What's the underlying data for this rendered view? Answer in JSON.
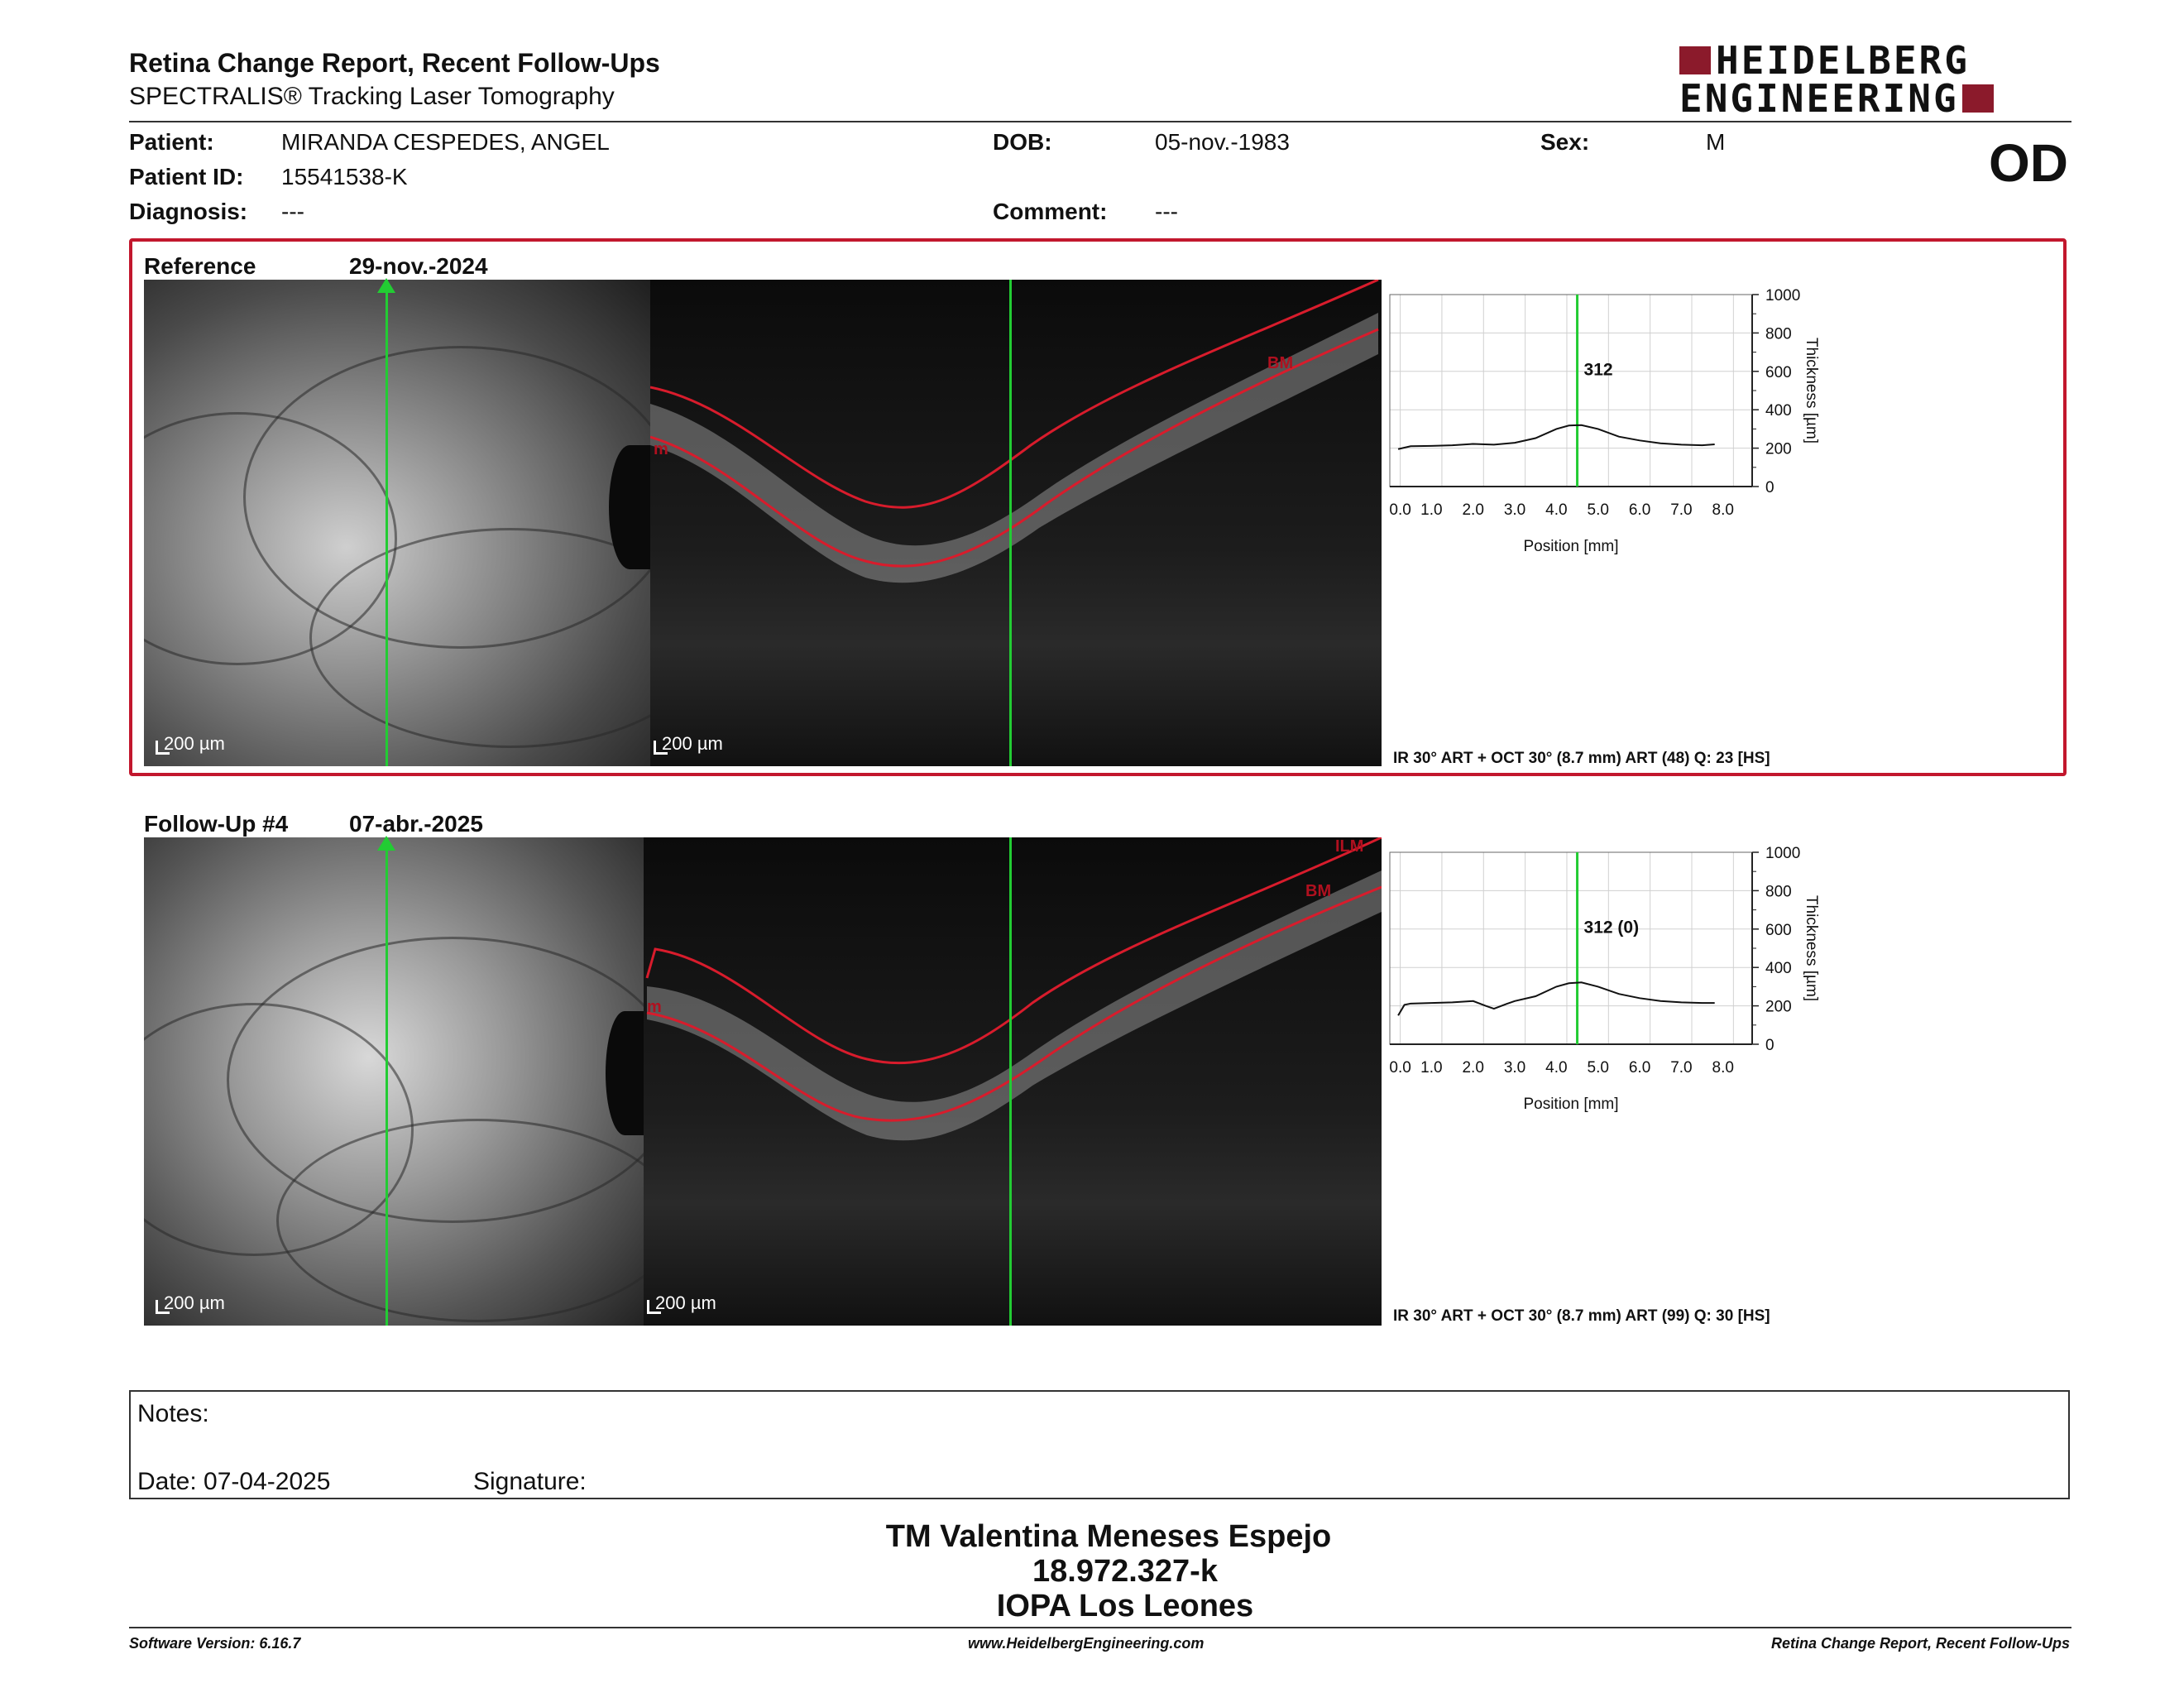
{
  "header": {
    "title": "Retina Change Report, Recent Follow-Ups",
    "subtitle": "SPECTRALIS® Tracking Laser Tomography",
    "brand_line1": "HEIDELBERG",
    "brand_line2": "ENGINEERING",
    "eye": "OD"
  },
  "patient": {
    "name_label": "Patient:",
    "name": "MIRANDA CESPEDES, ANGEL",
    "id_label": "Patient ID:",
    "id": "15541538-K",
    "diagnosis_label": "Diagnosis:",
    "diagnosis": "---",
    "dob_label": "DOB:",
    "dob": "05-nov.-1983",
    "comment_label": "Comment:",
    "comment": "---",
    "sex_label": "Sex:",
    "sex": "M"
  },
  "reference": {
    "label": "Reference",
    "date": "29-nov.-2024",
    "scale_ir": "200 µm",
    "scale_oct": "200 µm",
    "layer_top": "m",
    "layer_bm": "BM",
    "acquisition": "IR 30° ART + OCT 30° (8.7 mm) ART (48) Q: 23 [HS]",
    "graph_value": "312"
  },
  "followup": {
    "label": "Follow-Up #4",
    "date": "07-abr.-2025",
    "scale_ir": "200 µm",
    "scale_oct": "200 µm",
    "layer_top": "m",
    "layer_bm": "BM",
    "layer_ilm": "ILM",
    "acquisition": "IR 30° ART + OCT 30° (8.7 mm) ART (99) Q: 30 [HS]",
    "graph_value": "312 (0)"
  },
  "graph_axes": {
    "x_ticks": [
      "0.0",
      "1.0",
      "2.0",
      "3.0",
      "4.0",
      "5.0",
      "6.0",
      "7.0",
      "8.0"
    ],
    "y_ticks": [
      "1000",
      "800",
      "600",
      "400",
      "200",
      "0"
    ],
    "x_label": "Position [mm]",
    "y_label": "Thickness [µm]"
  },
  "chart_data": [
    {
      "type": "line",
      "xlabel": "Position [mm]",
      "ylabel": "Thickness [µm]",
      "xlim": [
        0,
        8.7
      ],
      "ylim": [
        0,
        1000
      ],
      "cursor_x": 4.5,
      "series": [
        {
          "x": [
            0.2,
            0.5,
            1.0,
            1.5,
            2.0,
            2.5,
            3.0,
            3.5,
            4.0,
            4.3,
            4.6,
            5.0,
            5.5,
            6.0,
            6.5,
            7.0,
            7.5,
            7.8
          ],
          "y": [
            195,
            210,
            212,
            215,
            222,
            218,
            228,
            252,
            300,
            318,
            320,
            300,
            260,
            240,
            225,
            218,
            215,
            220
          ]
        }
      ]
    },
    {
      "type": "line",
      "xlabel": "Position [mm]",
      "ylabel": "Thickness [µm]",
      "xlim": [
        0,
        8.7
      ],
      "ylim": [
        0,
        1000
      ],
      "cursor_x": 4.5,
      "series": [
        {
          "x": [
            0.2,
            0.35,
            0.5,
            1.0,
            1.5,
            2.0,
            2.3,
            2.5,
            2.8,
            3.0,
            3.5,
            4.0,
            4.3,
            4.6,
            5.0,
            5.5,
            6.0,
            6.5,
            7.0,
            7.5,
            7.8
          ],
          "y": [
            150,
            205,
            212,
            215,
            218,
            225,
            200,
            185,
            210,
            225,
            250,
            300,
            318,
            322,
            300,
            262,
            240,
            225,
            218,
            215,
            215
          ]
        }
      ]
    }
  ],
  "notes": {
    "notes_label": "Notes:",
    "date_label": "Date: 07-04-2025",
    "signature_label": "Signature:"
  },
  "signature": {
    "name": "TM Valentina Meneses Espejo",
    "rut": "18.972.327-k",
    "institution": "IOPA Los Leones"
  },
  "footer": {
    "version": "Software Version: 6.16.7",
    "website": "www.HeidelbergEngineering.com",
    "report": "Retina Change Report, Recent Follow-Ups"
  },
  "colors": {
    "accent": "#c2172d",
    "brand": "#8b1a2b",
    "cursor": "#22cc33"
  }
}
